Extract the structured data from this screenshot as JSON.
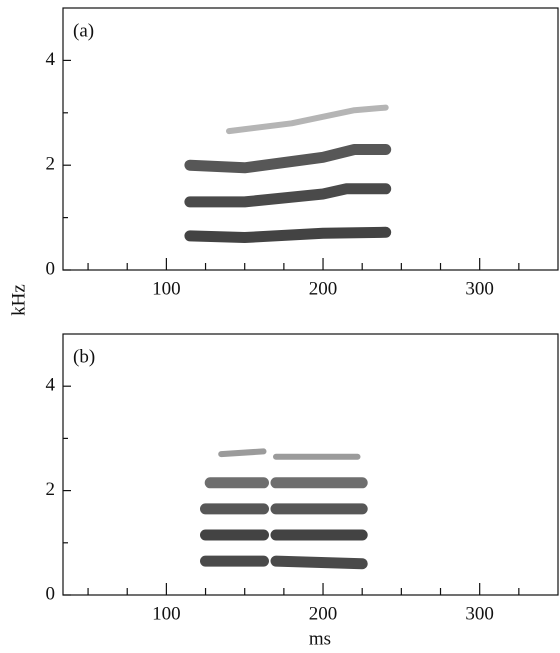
{
  "chart_data": [
    {
      "type": "line",
      "panel_label": "(a)",
      "ylabel": "kHz",
      "xlim": [
        34,
        350
      ],
      "ylim": [
        0,
        5
      ],
      "xticks": [
        100,
        200,
        300
      ],
      "yticks": [
        0,
        2,
        4
      ],
      "xminorticks": [
        50,
        75,
        125,
        150,
        175,
        225,
        250,
        275,
        325
      ],
      "yminorticks": [
        1,
        3
      ],
      "series": [
        {
          "color": "#222222",
          "x": [
            115,
            150,
            200,
            240
          ],
          "values": [
            0.65,
            0.62,
            0.7,
            0.72
          ]
        },
        {
          "color": "#2a2a2a",
          "x": [
            115,
            150,
            200,
            215,
            240
          ],
          "values": [
            1.3,
            1.3,
            1.45,
            1.55,
            1.55
          ]
        },
        {
          "color": "#3a3a3a",
          "x": [
            115,
            150,
            200,
            220,
            240
          ],
          "values": [
            2.0,
            1.95,
            2.15,
            2.3,
            2.3
          ]
        },
        {
          "color": "#a8a8a8",
          "x": [
            140,
            180,
            220,
            240
          ],
          "values": [
            2.65,
            2.8,
            3.05,
            3.1
          ]
        }
      ]
    },
    {
      "type": "line",
      "panel_label": "(b)",
      "xlabel": "ms",
      "xlim": [
        34,
        350
      ],
      "ylim": [
        0,
        5
      ],
      "xticks": [
        100,
        200,
        300
      ],
      "yticks": [
        0,
        2,
        4
      ],
      "xminorticks": [
        50,
        75,
        125,
        150,
        175,
        225,
        250,
        275,
        325
      ],
      "yminorticks": [
        1,
        3
      ],
      "series": [
        {
          "color": "#2a2a2a",
          "x": [
            125,
            162,
            166,
            170,
            225
          ],
          "values": [
            0.65,
            0.65,
            null,
            0.65,
            0.6
          ]
        },
        {
          "color": "#222222",
          "x": [
            125,
            162,
            166,
            170,
            225
          ],
          "values": [
            1.15,
            1.15,
            null,
            1.15,
            1.15
          ]
        },
        {
          "color": "#3a3a3a",
          "x": [
            125,
            162,
            166,
            170,
            225
          ],
          "values": [
            1.65,
            1.65,
            null,
            1.65,
            1.65
          ]
        },
        {
          "color": "#555555",
          "x": [
            128,
            162,
            166,
            170,
            225
          ],
          "values": [
            2.15,
            2.15,
            null,
            2.15,
            2.15
          ]
        },
        {
          "color": "#8a8a8a",
          "x": [
            135,
            162,
            166,
            170,
            222
          ],
          "values": [
            2.7,
            2.75,
            null,
            2.65,
            2.65
          ]
        }
      ]
    }
  ]
}
